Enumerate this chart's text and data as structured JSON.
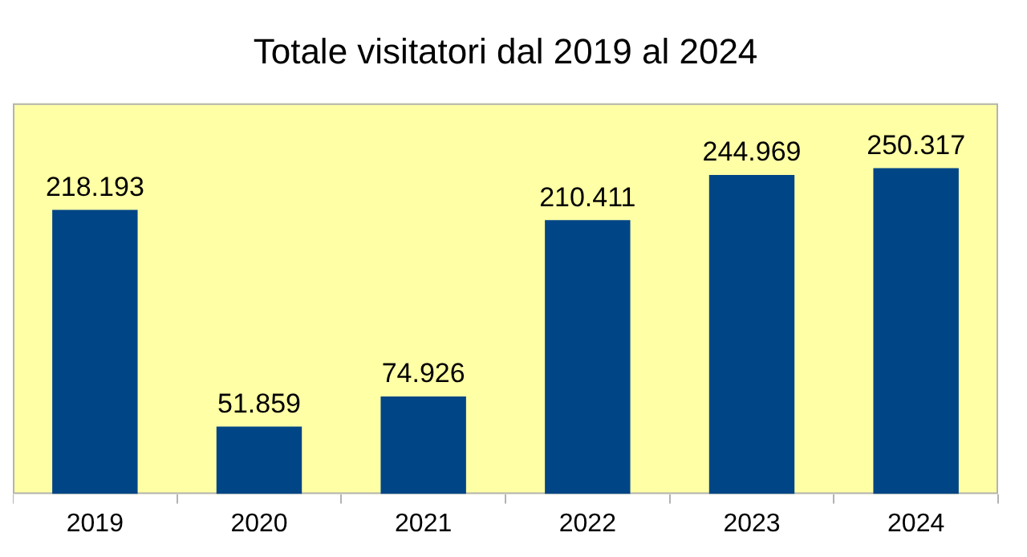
{
  "chart_data": {
    "type": "bar",
    "title": "Totale visitatori dal 2019 al 2024",
    "categories": [
      "2019",
      "2020",
      "2021",
      "2022",
      "2023",
      "2024"
    ],
    "series": [
      {
        "color": "#004586",
        "values": [
          218193,
          51859,
          74926,
          210411,
          244969,
          250317
        ],
        "value_labels": [
          "218.193",
          "51.859",
          "74.926",
          "210.411",
          "244.969",
          "250.317"
        ]
      }
    ],
    "tick_labels": "x",
    "grid": false,
    "legend": false
  }
}
